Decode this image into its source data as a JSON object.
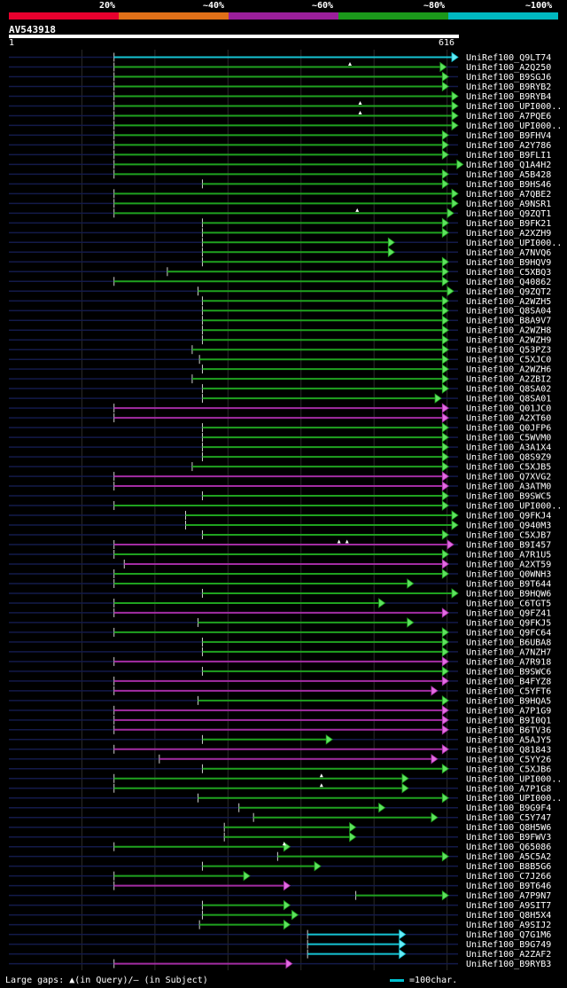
{
  "legend": {
    "labels": [
      "20%",
      "~40%",
      "~60%",
      "~80%",
      "~100%"
    ],
    "colors": [
      "#e8002e",
      "#e07018",
      "#9b1f9b",
      "#1b991b",
      "#00b8c0"
    ]
  },
  "query": {
    "name": "AV543918",
    "start": "1",
    "end": "616",
    "length": 616
  },
  "hits": [
    {
      "label": "UniRef100_Q9LT74",
      "s": 145,
      "e": 616,
      "c": "cyan",
      "m": []
    },
    {
      "label": "UniRef100_A2Q250",
      "s": 145,
      "e": 600,
      "c": "green",
      "m": [
        468
      ]
    },
    {
      "label": "UniRef100_B9SGJ6",
      "s": 145,
      "e": 603,
      "c": "green",
      "m": []
    },
    {
      "label": "UniRef100_B9RYB2",
      "s": 145,
      "e": 603,
      "c": "green",
      "m": []
    },
    {
      "label": "UniRef100_B9RYB4",
      "s": 145,
      "e": 616,
      "c": "green",
      "m": []
    },
    {
      "label": "UniRef100_UPI000..",
      "s": 145,
      "e": 616,
      "c": "green",
      "m": [
        482
      ]
    },
    {
      "label": "UniRef100_A7PQE6",
      "s": 145,
      "e": 616,
      "c": "green",
      "m": [
        482
      ]
    },
    {
      "label": "UniRef100_UPI000..",
      "s": 145,
      "e": 616,
      "c": "green",
      "m": []
    },
    {
      "label": "UniRef100_B9FHV4",
      "s": 145,
      "e": 603,
      "c": "green",
      "m": []
    },
    {
      "label": "UniRef100_A2Y786",
      "s": 145,
      "e": 603,
      "c": "green",
      "m": []
    },
    {
      "label": "UniRef100_B9FLI1",
      "s": 145,
      "e": 603,
      "c": "green",
      "m": []
    },
    {
      "label": "UniRef100_Q1A4H2",
      "s": 145,
      "e": 623,
      "c": "green",
      "m": []
    },
    {
      "label": "UniRef100_A5B428",
      "s": 145,
      "e": 603,
      "c": "green",
      "m": []
    },
    {
      "label": "UniRef100_B9HS46",
      "s": 266,
      "e": 603,
      "c": "green",
      "m": []
    },
    {
      "label": "UniRef100_A7QBE2",
      "s": 145,
      "e": 616,
      "c": "green",
      "m": []
    },
    {
      "label": "UniRef100_A9NSR1",
      "s": 145,
      "e": 616,
      "c": "green",
      "m": []
    },
    {
      "label": "UniRef100_Q9ZQT1",
      "s": 145,
      "e": 610,
      "c": "green",
      "m": [
        478
      ]
    },
    {
      "label": "UniRef100_B9FK21",
      "s": 266,
      "e": 603,
      "c": "green",
      "m": []
    },
    {
      "label": "UniRef100_A2XZH9",
      "s": 266,
      "e": 603,
      "c": "green",
      "m": []
    },
    {
      "label": "UniRef100_UPI000..",
      "s": 266,
      "e": 529,
      "c": "green",
      "m": []
    },
    {
      "label": "UniRef100_A7NVQ6",
      "s": 266,
      "e": 529,
      "c": "green",
      "m": []
    },
    {
      "label": "UniRef100_B9HQV9",
      "s": 266,
      "e": 603,
      "c": "green",
      "m": []
    },
    {
      "label": "UniRef100_C5XBQ3",
      "s": 218,
      "e": 603,
      "c": "green",
      "m": []
    },
    {
      "label": "UniRef100_Q40862",
      "s": 145,
      "e": 603,
      "c": "green",
      "m": []
    },
    {
      "label": "UniRef100_Q9ZQT2",
      "s": 260,
      "e": 610,
      "c": "green",
      "m": []
    },
    {
      "label": "UniRef100_A2WZH5",
      "s": 266,
      "e": 603,
      "c": "green",
      "m": []
    },
    {
      "label": "UniRef100_Q8SA04",
      "s": 266,
      "e": 603,
      "c": "green",
      "m": []
    },
    {
      "label": "UniRef100_B8A9V7",
      "s": 266,
      "e": 603,
      "c": "green",
      "m": []
    },
    {
      "label": "UniRef100_A2WZH8",
      "s": 266,
      "e": 603,
      "c": "green",
      "m": []
    },
    {
      "label": "UniRef100_A2WZH9",
      "s": 266,
      "e": 603,
      "c": "green",
      "m": []
    },
    {
      "label": "UniRef100_Q53PZ3",
      "s": 252,
      "e": 603,
      "c": "green",
      "m": []
    },
    {
      "label": "UniRef100_C5XJC0",
      "s": 262,
      "e": 603,
      "c": "green",
      "m": []
    },
    {
      "label": "UniRef100_A2WZH6",
      "s": 266,
      "e": 603,
      "c": "green",
      "m": []
    },
    {
      "label": "UniRef100_A2ZBI2",
      "s": 252,
      "e": 603,
      "c": "green",
      "m": []
    },
    {
      "label": "UniRef100_Q8SA02",
      "s": 266,
      "e": 603,
      "c": "green",
      "m": []
    },
    {
      "label": "UniRef100_Q8SA01",
      "s": 266,
      "e": 593,
      "c": "green",
      "m": []
    },
    {
      "label": "UniRef100_Q01JC0",
      "s": 145,
      "e": 603,
      "c": "purple",
      "m": []
    },
    {
      "label": "UniRef100_A2XT60",
      "s": 145,
      "e": 603,
      "c": "purple",
      "m": []
    },
    {
      "label": "UniRef100_Q0JFP6",
      "s": 266,
      "e": 603,
      "c": "green",
      "m": []
    },
    {
      "label": "UniRef100_C5WVM0",
      "s": 266,
      "e": 603,
      "c": "green",
      "m": []
    },
    {
      "label": "UniRef100_A3A1X4",
      "s": 266,
      "e": 603,
      "c": "green",
      "m": []
    },
    {
      "label": "UniRef100_Q8S9Z9",
      "s": 266,
      "e": 603,
      "c": "green",
      "m": []
    },
    {
      "label": "UniRef100_C5XJB5",
      "s": 252,
      "e": 603,
      "c": "green",
      "m": []
    },
    {
      "label": "UniRef100_Q7XVG2",
      "s": 145,
      "e": 603,
      "c": "purple",
      "m": []
    },
    {
      "label": "UniRef100_A3ATM0",
      "s": 145,
      "e": 603,
      "c": "purple",
      "m": []
    },
    {
      "label": "UniRef100_B9SWC5",
      "s": 266,
      "e": 603,
      "c": "green",
      "m": []
    },
    {
      "label": "UniRef100_UPI000..",
      "s": 145,
      "e": 603,
      "c": "green",
      "m": []
    },
    {
      "label": "UniRef100_Q9FKJ4",
      "s": 243,
      "e": 616,
      "c": "green",
      "m": []
    },
    {
      "label": "UniRef100_Q940M3",
      "s": 243,
      "e": 616,
      "c": "green",
      "m": []
    },
    {
      "label": "UniRef100_C5XJB7",
      "s": 266,
      "e": 603,
      "c": "green",
      "m": []
    },
    {
      "label": "UniRef100_B9I457",
      "s": 145,
      "e": 610,
      "c": "purple",
      "m": [
        453,
        464
      ]
    },
    {
      "label": "UniRef100_A7R1U5",
      "s": 145,
      "e": 603,
      "c": "green",
      "m": []
    },
    {
      "label": "UniRef100_A2XT59",
      "s": 159,
      "e": 603,
      "c": "purple",
      "m": []
    },
    {
      "label": "UniRef100_Q0WNH3",
      "s": 145,
      "e": 603,
      "c": "green",
      "m": []
    },
    {
      "label": "UniRef100_B9T644",
      "s": 145,
      "e": 555,
      "c": "green",
      "m": []
    },
    {
      "label": "UniRef100_B9HQW6",
      "s": 266,
      "e": 616,
      "c": "green",
      "m": []
    },
    {
      "label": "UniRef100_C6TGT5",
      "s": 145,
      "e": 516,
      "c": "green",
      "m": []
    },
    {
      "label": "UniRef100_Q9FZ41",
      "s": 145,
      "e": 603,
      "c": "purple",
      "m": []
    },
    {
      "label": "UniRef100_Q9FKJ5",
      "s": 260,
      "e": 555,
      "c": "green",
      "m": []
    },
    {
      "label": "UniRef100_Q9FC64",
      "s": 145,
      "e": 603,
      "c": "green",
      "m": []
    },
    {
      "label": "UniRef100_B6UBA8",
      "s": 266,
      "e": 603,
      "c": "green",
      "m": []
    },
    {
      "label": "UniRef100_A7NZH7",
      "s": 266,
      "e": 603,
      "c": "green",
      "m": []
    },
    {
      "label": "UniRef100_A7R918",
      "s": 145,
      "e": 603,
      "c": "purple",
      "m": []
    },
    {
      "label": "UniRef100_B9SWC6",
      "s": 266,
      "e": 603,
      "c": "green",
      "m": []
    },
    {
      "label": "UniRef100_B4FYZ8",
      "s": 145,
      "e": 603,
      "c": "purple",
      "m": []
    },
    {
      "label": "UniRef100_C5YFT6",
      "s": 145,
      "e": 588,
      "c": "purple",
      "m": []
    },
    {
      "label": "UniRef100_B9HQA5",
      "s": 260,
      "e": 603,
      "c": "green",
      "m": []
    },
    {
      "label": "UniRef100_A7P1G9",
      "s": 145,
      "e": 603,
      "c": "purple",
      "m": []
    },
    {
      "label": "UniRef100_B9I0Q1",
      "s": 145,
      "e": 603,
      "c": "purple",
      "m": []
    },
    {
      "label": "UniRef100_B6TV36",
      "s": 145,
      "e": 603,
      "c": "purple",
      "m": []
    },
    {
      "label": "UniRef100_A5AJY5",
      "s": 266,
      "e": 444,
      "c": "green",
      "m": []
    },
    {
      "label": "UniRef100_Q81843",
      "s": 145,
      "e": 603,
      "c": "purple",
      "m": []
    },
    {
      "label": "UniRef100_C5YY26",
      "s": 207,
      "e": 588,
      "c": "purple",
      "m": []
    },
    {
      "label": "UniRef100_C5XJB6",
      "s": 266,
      "e": 603,
      "c": "green",
      "m": []
    },
    {
      "label": "UniRef100_UPI000..",
      "s": 145,
      "e": 548,
      "c": "green",
      "m": [
        429
      ]
    },
    {
      "label": "UniRef100_A7P1G8",
      "s": 145,
      "e": 548,
      "c": "green",
      "m": [
        429
      ]
    },
    {
      "label": "UniRef100_UPI000..",
      "s": 260,
      "e": 603,
      "c": "green",
      "m": []
    },
    {
      "label": "UniRef100_B9G9F4",
      "s": 316,
      "e": 516,
      "c": "green",
      "m": []
    },
    {
      "label": "UniRef100_C5Y747",
      "s": 336,
      "e": 588,
      "c": "green",
      "m": []
    },
    {
      "label": "UniRef100_Q8H5W6",
      "s": 296,
      "e": 476,
      "c": "green",
      "m": []
    },
    {
      "label": "UniRef100_B9FWV3",
      "s": 296,
      "e": 476,
      "c": "green",
      "m": []
    },
    {
      "label": "UniRef100_Q65086",
      "s": 145,
      "e": 386,
      "c": "green",
      "m": [
        378
      ]
    },
    {
      "label": "UniRef100_A5C5A2",
      "s": 369,
      "e": 603,
      "c": "green",
      "m": []
    },
    {
      "label": "UniRef100_B8B5G6",
      "s": 266,
      "e": 428,
      "c": "green",
      "m": []
    },
    {
      "label": "UniRef100_C7J266",
      "s": 145,
      "e": 331,
      "c": "green",
      "m": []
    },
    {
      "label": "UniRef100_B9T646",
      "s": 145,
      "e": 386,
      "c": "purple",
      "m": []
    },
    {
      "label": "UniRef100_A7P9N7",
      "s": 476,
      "e": 603,
      "c": "green",
      "m": []
    },
    {
      "label": "UniRef100_A9SIT7",
      "s": 266,
      "e": 386,
      "c": "green",
      "m": []
    },
    {
      "label": "UniRef100_Q8H5X4",
      "s": 266,
      "e": 397,
      "c": "green",
      "m": []
    },
    {
      "label": "UniRef100_A9SIJ2",
      "s": 262,
      "e": 386,
      "c": "green",
      "m": []
    },
    {
      "label": "UniRef100_Q7G1M6",
      "s": 410,
      "e": 544,
      "c": "cyan",
      "m": []
    },
    {
      "label": "UniRef100_B9G749",
      "s": 410,
      "e": 544,
      "c": "cyan",
      "m": []
    },
    {
      "label": "UniRef100_A2ZAF2",
      "s": 410,
      "e": 544,
      "c": "cyan",
      "m": []
    },
    {
      "label": "UniRef100_B9RYB3",
      "s": 145,
      "e": 389,
      "c": "purple",
      "m": []
    }
  ],
  "footer": {
    "gaps_text": "Large gaps: ▲(in Query)/– (in Subject)",
    "scale_text": "=100char."
  }
}
